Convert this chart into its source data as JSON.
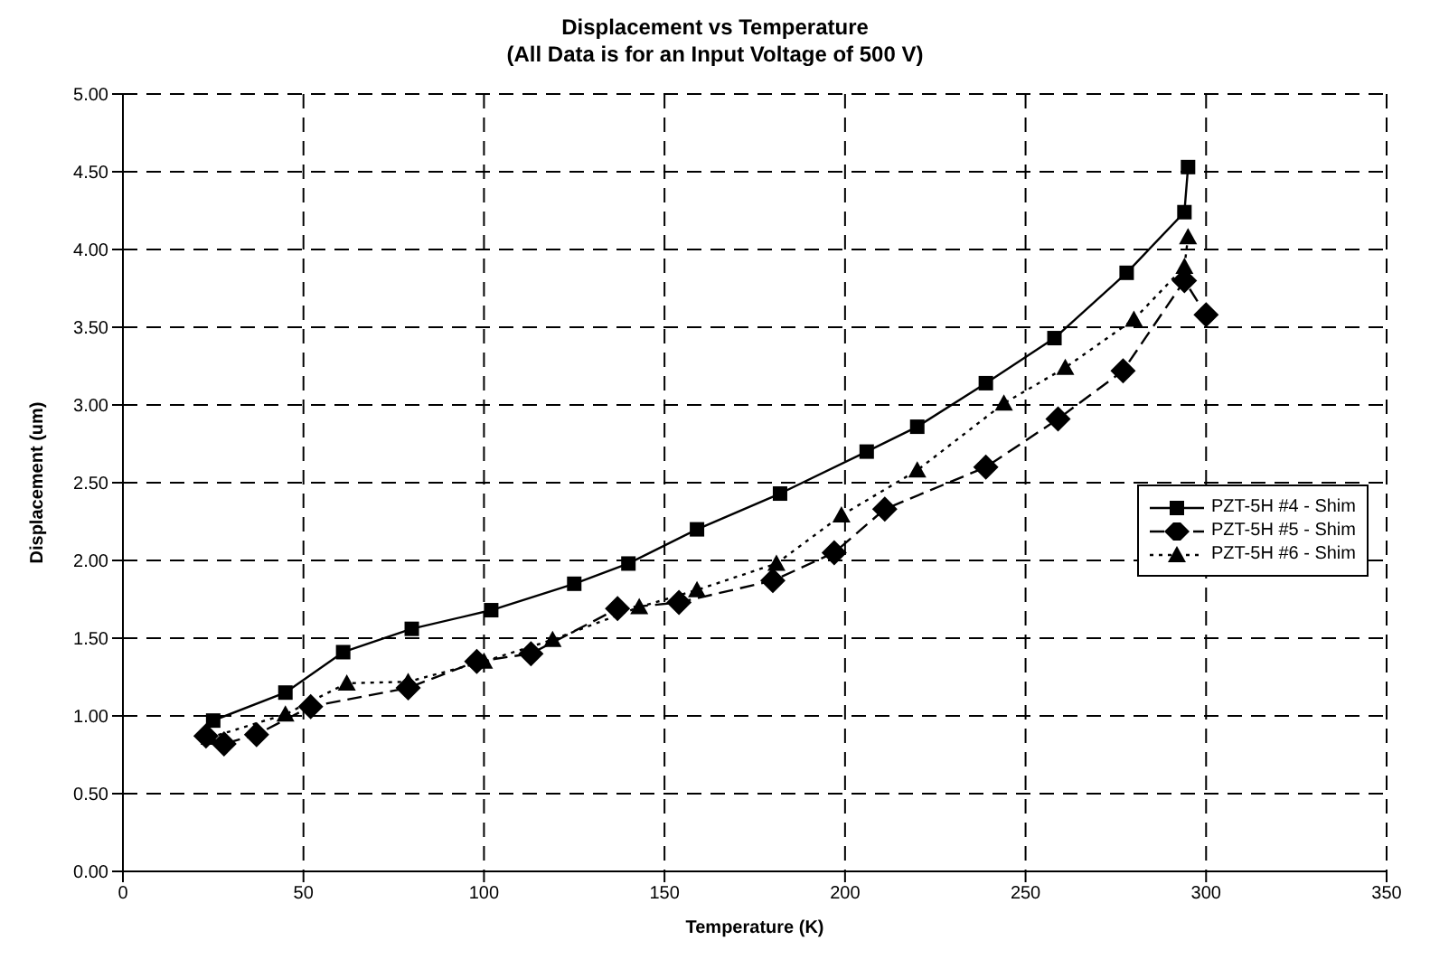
{
  "chart_data": {
    "type": "line",
    "title": "Displacement vs Temperature",
    "subtitle": "(All Data is for an Input Voltage of 500 V)",
    "xlabel": "Temperature (K)",
    "ylabel": "Displacement (um)",
    "xlim": [
      0,
      350
    ],
    "xticks": [
      0,
      50,
      100,
      150,
      200,
      250,
      300,
      350
    ],
    "ylim": [
      0,
      5
    ],
    "yticks": [
      {
        "value": 0,
        "label": "0.00"
      },
      {
        "value": 0.5,
        "label": "0.50"
      },
      {
        "value": 1,
        "label": "1.00"
      },
      {
        "value": 1.5,
        "label": "1.50"
      },
      {
        "value": 2,
        "label": "2.00"
      },
      {
        "value": 2.5,
        "label": "2.50"
      },
      {
        "value": 3,
        "label": "3.00"
      },
      {
        "value": 3.5,
        "label": "3.50"
      },
      {
        "value": 4,
        "label": "4.00"
      },
      {
        "value": 4.5,
        "label": "4.50"
      },
      {
        "value": 5,
        "label": "5.00"
      }
    ],
    "grid": true,
    "legend": "right",
    "series": [
      {
        "name": "PZT-5H #4 - Shim",
        "color": "#000000",
        "marker": "square",
        "line_style": "solid",
        "x": [
          25,
          45,
          61,
          80,
          102,
          125,
          140,
          159,
          182,
          206,
          220,
          239,
          258,
          278,
          294,
          295
        ],
        "values": [
          0.97,
          1.15,
          1.41,
          1.56,
          1.68,
          1.85,
          1.98,
          2.2,
          2.43,
          2.7,
          2.86,
          3.14,
          3.43,
          3.85,
          4.24,
          4.53
        ]
      },
      {
        "name": "PZT-5H #5 - Shim",
        "color": "#000000",
        "marker": "diamond",
        "line_style": "dashed",
        "x": [
          23,
          28,
          37,
          52,
          79,
          98,
          113,
          137,
          154,
          180,
          197,
          211,
          239,
          259,
          277,
          294,
          300
        ],
        "values": [
          0.87,
          0.82,
          0.88,
          1.06,
          1.18,
          1.35,
          1.4,
          1.69,
          1.73,
          1.87,
          2.05,
          2.33,
          2.6,
          2.91,
          3.22,
          3.8,
          3.58
        ]
      },
      {
        "name": "PZT-5H #6 - Shim",
        "color": "#000000",
        "marker": "triangle",
        "line_style": "dotted",
        "x": [
          24,
          45,
          62,
          79,
          100,
          119,
          143,
          159,
          181,
          199,
          220,
          244,
          261,
          280,
          294,
          295
        ],
        "values": [
          0.86,
          1.01,
          1.21,
          1.22,
          1.35,
          1.49,
          1.7,
          1.81,
          1.98,
          2.29,
          2.58,
          3.01,
          3.24,
          3.55,
          3.89,
          4.08
        ]
      }
    ]
  }
}
